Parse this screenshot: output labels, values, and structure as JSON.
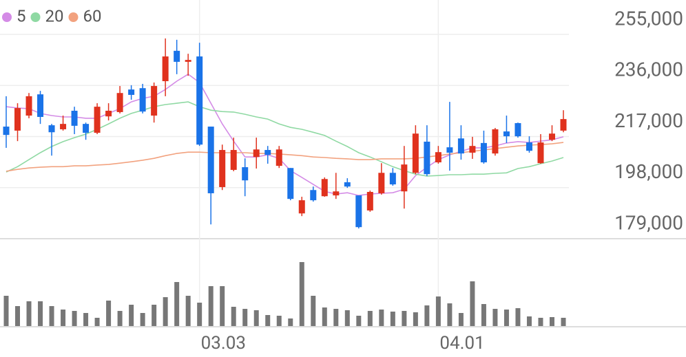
{
  "chart_data": {
    "type": "candlestick",
    "categories": [
      null,
      null,
      null,
      null,
      null,
      null,
      null,
      null,
      null,
      null,
      null,
      null,
      null,
      null,
      null,
      null,
      null,
      "03.03",
      null,
      null,
      null,
      null,
      null,
      null,
      null,
      null,
      null,
      null,
      null,
      null,
      null,
      null,
      null,
      null,
      null,
      null,
      null,
      null,
      "04.01",
      null,
      null,
      null,
      null,
      null,
      null,
      null,
      null,
      null,
      null,
      null
    ],
    "open": [
      220700,
      219200,
      224800,
      232700,
      221200,
      219700,
      226600,
      221700,
      218400,
      224500,
      226100,
      234500,
      235000,
      224800,
      237600,
      248900,
      244800,
      246800,
      220700,
      198200,
      204600,
      205600,
      209400,
      212000,
      206100,
      205300,
      188400,
      197100,
      194800,
      195100,
      200000,
      195100,
      189500,
      195900,
      203500,
      196600,
      203500,
      215100,
      207400,
      213000,
      216300,
      211000,
      214600,
      210700,
      218900,
      222000,
      214800,
      207100,
      215800,
      219200
    ],
    "high": [
      232000,
      229400,
      233200,
      234000,
      221700,
      224800,
      228100,
      222200,
      229400,
      229400,
      235800,
      236100,
      236600,
      237100,
      253500,
      253000,
      247800,
      251900,
      220700,
      214000,
      216600,
      208900,
      216600,
      213500,
      213500,
      205300,
      194600,
      198400,
      201800,
      203500,
      201500,
      195100,
      196900,
      207100,
      205300,
      213500,
      221200,
      221200,
      213500,
      229900,
      221200,
      216900,
      219200,
      220200,
      224800,
      222200,
      217100,
      217900,
      221200,
      226800
    ],
    "low": [
      212800,
      215300,
      223800,
      221700,
      209900,
      219200,
      217900,
      215800,
      217900,
      223000,
      225600,
      230700,
      225600,
      222200,
      232000,
      240200,
      239600,
      213500,
      184300,
      197100,
      204100,
      194800,
      205100,
      206900,
      205300,
      193300,
      187400,
      192800,
      194600,
      193800,
      197900,
      182800,
      189000,
      195400,
      198700,
      190200,
      203000,
      202300,
      206900,
      204300,
      208400,
      208700,
      206900,
      209900,
      214600,
      216600,
      211000,
      206900,
      215300,
      218600
    ],
    "close": [
      217600,
      227600,
      232000,
      224300,
      218600,
      221700,
      221000,
      218400,
      228100,
      226600,
      233200,
      232500,
      226300,
      235800,
      246800,
      244800,
      245500,
      214000,
      195900,
      212000,
      212000,
      200700,
      212200,
      210200,
      212200,
      193800,
      193300,
      193300,
      201200,
      196600,
      198400,
      183300,
      196400,
      203500,
      199200,
      206600,
      218100,
      203000,
      211200,
      211000,
      210700,
      213500,
      207400,
      219700,
      217100,
      217100,
      211700,
      214800,
      218100,
      223500
    ],
    "up_color": "#e0321e",
    "down_color": "#1a73e8",
    "series": [
      {
        "name": "5",
        "color": "#d48be6",
        "values": [
          228100,
          227600,
          227400,
          225600,
          224800,
          224300,
          224300,
          223800,
          223800,
          225600,
          227400,
          229900,
          231200,
          232000,
          234500,
          237600,
          240200,
          237100,
          229400,
          221700,
          215300,
          209400,
          209400,
          210200,
          208900,
          204300,
          201800,
          199200,
          196600,
          195600,
          196100,
          195100,
          195600,
          195900,
          196100,
          197400,
          202500,
          205600,
          208400,
          210200,
          211500,
          212800,
          212800,
          213500,
          214600,
          215100,
          214800,
          215300,
          215800,
          216900
        ]
      },
      {
        "name": "20",
        "color": "#8fd9a3",
        "values": [
          203800,
          205800,
          208400,
          211000,
          213300,
          215100,
          216600,
          217900,
          219700,
          221700,
          223800,
          225600,
          226800,
          228100,
          228900,
          229400,
          229900,
          228100,
          226800,
          226300,
          226100,
          225300,
          224300,
          223500,
          221700,
          220400,
          219700,
          218600,
          217400,
          215300,
          213300,
          211000,
          209400,
          207600,
          205800,
          204300,
          203000,
          202300,
          202500,
          202800,
          202800,
          203000,
          203000,
          203300,
          203500,
          205100,
          205800,
          206900,
          207900,
          209200
        ]
      },
      {
        "name": "60",
        "color": "#f2a27f",
        "values": [
          204100,
          204800,
          205300,
          205600,
          205800,
          205800,
          206100,
          206100,
          206400,
          206600,
          207100,
          207600,
          208200,
          208900,
          209900,
          210700,
          211200,
          211200,
          211000,
          211000,
          211000,
          211000,
          210700,
          210700,
          210500,
          210200,
          209900,
          209400,
          209200,
          208900,
          208700,
          208400,
          208400,
          208700,
          208700,
          208700,
          208900,
          209400,
          209900,
          210500,
          211000,
          211500,
          212000,
          212500,
          213000,
          213500,
          213800,
          214000,
          214300,
          214800
        ]
      }
    ],
    "volume": [
      44,
      29,
      36,
      36,
      29,
      24,
      22,
      19,
      12,
      37,
      22,
      31,
      19,
      31,
      42,
      64,
      44,
      34,
      58,
      58,
      28,
      25,
      23,
      16,
      15,
      11,
      93,
      44,
      27,
      25,
      23,
      15,
      22,
      24,
      21,
      22,
      20,
      30,
      43,
      33,
      19,
      65,
      32,
      25,
      24,
      26,
      14,
      12,
      13,
      12
    ],
    "volume_color": "#777777",
    "ylim": [
      179000,
      267800
    ],
    "yticks": [
      {
        "value": 179000,
        "label": "179,000"
      },
      {
        "value": 198000,
        "label": "198,000"
      },
      {
        "value": 217000,
        "label": "217,000"
      },
      {
        "value": 236000,
        "label": "236,000"
      },
      {
        "value": 255000,
        "label": "255,000"
      }
    ],
    "grid": true
  }
}
